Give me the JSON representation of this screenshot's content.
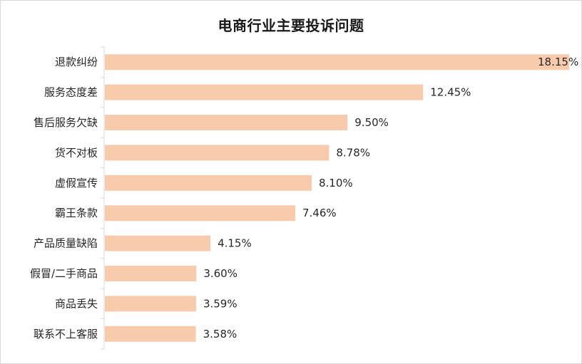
{
  "chart_data": {
    "type": "bar",
    "orientation": "horizontal",
    "title": "电商行业主要投诉问题",
    "xlabel": "",
    "ylabel": "",
    "categories": [
      "退款纠纷",
      "服务态度差",
      "售后服务欠缺",
      "货不对板",
      "虚假宣传",
      "霸王条款",
      "产品质量缺陷",
      "假冒/二手商品",
      "商品丢失",
      "联系不上客服"
    ],
    "values": [
      18.15,
      12.45,
      9.5,
      8.78,
      8.1,
      7.46,
      4.15,
      3.6,
      3.59,
      3.58
    ],
    "data_labels": [
      "18.15%",
      "12.45%",
      "9.50%",
      "8.78%",
      "8.10%",
      "7.46%",
      "4.15%",
      "3.60%",
      "3.59%",
      "3.58%"
    ],
    "xlim": [
      0,
      18.15
    ],
    "grid": false,
    "legend": "none",
    "bar_color": "#f8cbad"
  }
}
